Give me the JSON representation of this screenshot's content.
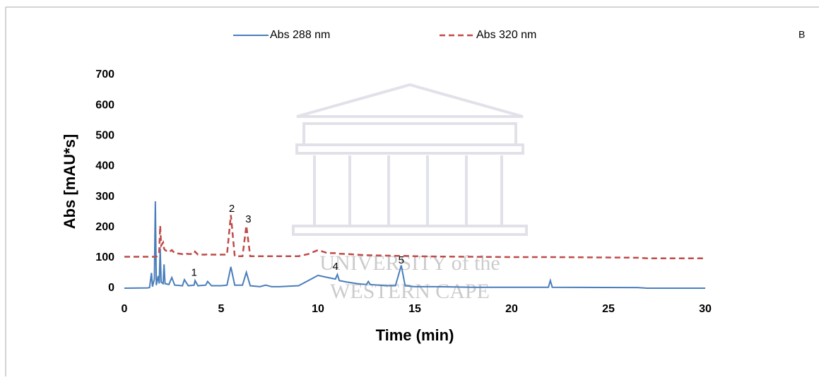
{
  "chart_data": {
    "type": "line",
    "panel_label": "B",
    "x_label": "Time (min)",
    "y_label": "Abs [mAU*s]",
    "x": [
      0,
      1.2,
      1.3,
      1.4,
      1.45,
      1.55,
      1.6,
      1.65,
      1.75,
      1.8,
      1.85,
      1.9,
      2.0,
      2.05,
      2.1,
      2.3,
      2.45,
      2.6,
      3.0,
      3.1,
      3.3,
      3.6,
      3.65,
      3.8,
      4.2,
      4.3,
      4.5,
      5.0,
      5.3,
      5.5,
      5.7,
      6.1,
      6.3,
      6.5,
      7.0,
      7.3,
      7.6,
      8.0,
      9.0,
      9.5,
      10.0,
      10.5,
      10.9,
      11.0,
      11.1,
      11.5,
      12.0,
      12.5,
      12.6,
      12.7,
      13.5,
      14.0,
      14.3,
      14.5,
      15.0,
      16.0,
      18,
      20,
      21.9,
      22.0,
      22.1,
      26.5,
      27,
      30
    ],
    "series": [
      {
        "name": "Abs 288 nm",
        "color": "#4a7ebb",
        "dash": false,
        "values": [
          0,
          1,
          2,
          50,
          5,
          30,
          285,
          10,
          40,
          15,
          130,
          20,
          15,
          78,
          15,
          12,
          35,
          10,
          8,
          28,
          8,
          10,
          25,
          8,
          10,
          22,
          8,
          8,
          10,
          70,
          10,
          10,
          52,
          8,
          5,
          10,
          5,
          5,
          8,
          25,
          42,
          35,
          30,
          45,
          25,
          20,
          15,
          12,
          22,
          12,
          8,
          8,
          75,
          8,
          5,
          5,
          3,
          3,
          3,
          25,
          3,
          2,
          0,
          0
        ]
      },
      {
        "name": "Abs 320 nm",
        "color": "#be4b48",
        "dash": true,
        "values": [
          103,
          103,
          103,
          103,
          103,
          103,
          103,
          103,
          110,
          120,
          205,
          140,
          150,
          130,
          125,
          118,
          125,
          115,
          112,
          115,
          112,
          112,
          120,
          110,
          110,
          112,
          110,
          110,
          110,
          240,
          105,
          105,
          205,
          105,
          105,
          105,
          105,
          105,
          105,
          112,
          125,
          115,
          115,
          115,
          113,
          112,
          110,
          108,
          108,
          108,
          107,
          106,
          106,
          106,
          105,
          104,
          103,
          102,
          102,
          102,
          102,
          100,
          98,
          98
        ]
      }
    ],
    "annotations": [
      {
        "text": "1",
        "x": 3.6,
        "y": 50
      },
      {
        "text": "2",
        "x": 5.55,
        "y": 260
      },
      {
        "text": "3",
        "x": 6.4,
        "y": 225
      },
      {
        "text": "4",
        "x": 10.9,
        "y": 70
      },
      {
        "text": "5",
        "x": 14.3,
        "y": 90
      }
    ],
    "watermark": [
      "UNIVERSITY of the",
      "WESTERN CAPE"
    ],
    "xlim": [
      0,
      30
    ],
    "xticks": [
      0,
      5,
      10,
      15,
      20,
      25,
      30
    ],
    "ylim": [
      0,
      700
    ],
    "yticks": [
      0,
      100,
      200,
      300,
      400,
      500,
      600,
      700
    ]
  }
}
